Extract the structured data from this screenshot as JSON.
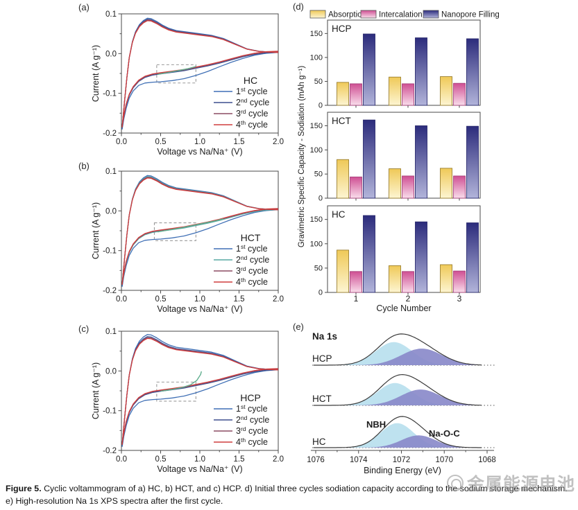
{
  "caption": {
    "label": "Figure 5.",
    "text": " Cyclic voltammogram of a) HC, b) HCT, and c) HCP. d) Initial three cycles sodiation capacity according to the sodium storage mechanism. e) High-resolution Na 1s XPS spectra after the first cycle."
  },
  "watermark": {
    "text": "金属能源电池",
    "logo": "circle-swirl-logo"
  },
  "panel_tags": {
    "a": "(a)",
    "b": "(b)",
    "c": "(c)",
    "d": "(d)",
    "e": "(e)"
  },
  "cv_base": {
    "cathodic_first": [
      [
        2.0,
        0.003
      ],
      [
        1.85,
        0.001
      ],
      [
        1.7,
        -0.004
      ],
      [
        1.55,
        -0.012
      ],
      [
        1.4,
        -0.022
      ],
      [
        1.25,
        -0.033
      ],
      [
        1.1,
        -0.045
      ],
      [
        0.95,
        -0.055
      ],
      [
        0.8,
        -0.063
      ],
      [
        0.65,
        -0.068
      ],
      [
        0.5,
        -0.071
      ],
      [
        0.4,
        -0.072
      ],
      [
        0.3,
        -0.074
      ],
      [
        0.22,
        -0.08
      ],
      [
        0.15,
        -0.094
      ],
      [
        0.1,
        -0.112
      ],
      [
        0.06,
        -0.138
      ],
      [
        0.03,
        -0.165
      ],
      [
        0.01,
        -0.19
      ]
    ],
    "cathodic": [
      [
        2.0,
        0.003
      ],
      [
        1.85,
        0.002
      ],
      [
        1.7,
        -0.002
      ],
      [
        1.55,
        -0.008
      ],
      [
        1.4,
        -0.016
      ],
      [
        1.25,
        -0.024
      ],
      [
        1.1,
        -0.031
      ],
      [
        0.95,
        -0.037
      ],
      [
        0.8,
        -0.043
      ],
      [
        0.65,
        -0.047
      ],
      [
        0.5,
        -0.051
      ],
      [
        0.4,
        -0.054
      ],
      [
        0.3,
        -0.06
      ],
      [
        0.22,
        -0.07
      ],
      [
        0.15,
        -0.086
      ],
      [
        0.1,
        -0.105
      ],
      [
        0.06,
        -0.13
      ],
      [
        0.03,
        -0.16
      ],
      [
        0.01,
        -0.185
      ]
    ],
    "anodic": [
      [
        0.01,
        -0.185
      ],
      [
        0.04,
        -0.12
      ],
      [
        0.07,
        -0.06
      ],
      [
        0.1,
        -0.01
      ],
      [
        0.14,
        0.03
      ],
      [
        0.18,
        0.055
      ],
      [
        0.23,
        0.073
      ],
      [
        0.28,
        0.083
      ],
      [
        0.33,
        0.089
      ],
      [
        0.38,
        0.088
      ],
      [
        0.45,
        0.081
      ],
      [
        0.52,
        0.072
      ],
      [
        0.6,
        0.064
      ],
      [
        0.7,
        0.058
      ],
      [
        0.85,
        0.054
      ],
      [
        1.0,
        0.05
      ],
      [
        1.15,
        0.046
      ],
      [
        1.3,
        0.038
      ],
      [
        1.45,
        0.025
      ],
      [
        1.6,
        0.012
      ],
      [
        1.75,
        0.006
      ],
      [
        1.88,
        0.004
      ],
      [
        2.0,
        0.003
      ]
    ]
  },
  "chart_data": [
    {
      "id": "cv_a",
      "type": "line",
      "panel": "a",
      "sample": "HC",
      "sample_color": "#4f9a9a",
      "xlabel": "Voltage vs Na/Na⁺ (V)",
      "ylabel": "Current (A g⁻¹)",
      "xlim": [
        0,
        2
      ],
      "ylim": [
        -0.2,
        0.1
      ],
      "xticks": [
        "0.0",
        "0.5",
        "1.0",
        "1.5",
        "2.0"
      ],
      "yticks": [
        "0.1",
        "0.0",
        "-0.1",
        "-0.2"
      ],
      "cycles": [
        {
          "base": "1",
          "sup": "st",
          "rest": " cycle",
          "color": "#3f6fb5",
          "first": true,
          "scale": 1.0,
          "dy": 0
        },
        {
          "base": "2",
          "sup": "nd",
          "rest": " cycle",
          "color": "#3d4f8e",
          "first": false,
          "scale": 0.97,
          "dy": 0.0
        },
        {
          "base": "3",
          "sup": "rd",
          "rest": " cycle",
          "color": "#8c4a62",
          "first": false,
          "scale": 0.95,
          "dy": 0.002
        },
        {
          "base": "4",
          "sup": "th",
          "rest": " cycle",
          "color": "#cf3d3d",
          "first": false,
          "scale": 0.93,
          "dy": 0.003
        }
      ],
      "highlight_box": {
        "x0": 0.45,
        "x1": 0.95,
        "y0": -0.074,
        "y1": -0.028
      },
      "extra_segment": {
        "color": "#5fae8e",
        "points": [
          [
            0.46,
            -0.0525
          ],
          [
            0.58,
            -0.048
          ],
          [
            0.72,
            -0.043
          ],
          [
            0.85,
            -0.038
          ],
          [
            0.95,
            -0.0325
          ]
        ]
      }
    },
    {
      "id": "cv_b",
      "type": "line",
      "panel": "b",
      "sample": "HCT",
      "sample_color": "#8f8f4f",
      "xlabel": "Voltage vs Na/Na⁺ (V)",
      "ylabel": "Current (A g⁻¹)",
      "xlim": [
        0,
        2
      ],
      "ylim": [
        -0.2,
        0.1
      ],
      "xticks": [
        "0.0",
        "0.5",
        "1.0",
        "1.5",
        "2.0"
      ],
      "yticks": [
        "0.1",
        "0.0",
        "-0.1",
        "-0.2"
      ],
      "cycles": [
        {
          "base": "1",
          "sup": "st",
          "rest": " cycle",
          "color": "#3f6fb5",
          "first": true,
          "scale": 1.0,
          "dy": 0
        },
        {
          "base": "2",
          "sup": "nd",
          "rest": " cycle",
          "color": "#57a8a2",
          "first": false,
          "scale": 0.97,
          "dy": 0.0
        },
        {
          "base": "3",
          "sup": "rd",
          "rest": " cycle",
          "color": "#8c4a62",
          "first": false,
          "scale": 0.95,
          "dy": 0.002
        },
        {
          "base": "4",
          "sup": "th",
          "rest": " cycle",
          "color": "#cf3d3d",
          "first": false,
          "scale": 0.93,
          "dy": 0.003
        }
      ],
      "highlight_box": {
        "x0": 0.42,
        "x1": 0.95,
        "y0": -0.075,
        "y1": -0.03
      },
      "extra_segment": {
        "color": "#5fae8e",
        "points": [
          [
            0.46,
            -0.053
          ],
          [
            0.6,
            -0.048
          ],
          [
            0.75,
            -0.043
          ],
          [
            0.9,
            -0.037
          ],
          [
            1.05,
            -0.031
          ],
          [
            1.2,
            -0.025
          ],
          [
            1.3,
            -0.02
          ]
        ]
      }
    },
    {
      "id": "cv_c",
      "type": "line",
      "panel": "c",
      "sample": "HCP",
      "sample_color": "#b3a86b",
      "xlabel": "Voltage vs Na/Na⁺ (V)",
      "ylabel": "Current (A g⁻¹)",
      "xlim": [
        0,
        2
      ],
      "ylim": [
        -0.2,
        0.1
      ],
      "xticks": [
        "0.0",
        "0.5",
        "1.0",
        "1.5",
        "2.0"
      ],
      "yticks": [
        "0.1",
        "0.0",
        "-0.1",
        "-0.2"
      ],
      "cycles": [
        {
          "base": "1",
          "sup": "st",
          "rest": " cycle",
          "color": "#3f6fb5",
          "first": true,
          "scale": 1.03,
          "dy": 0
        },
        {
          "base": "2",
          "sup": "nd",
          "rest": " cycle",
          "color": "#3d4f8e",
          "first": false,
          "scale": 0.97,
          "dy": 0.0
        },
        {
          "base": "3",
          "sup": "rd",
          "rest": " cycle",
          "color": "#8c4a62",
          "first": false,
          "scale": 0.94,
          "dy": 0.002
        },
        {
          "base": "4",
          "sup": "th",
          "rest": " cycle",
          "color": "#cf3d3d",
          "first": false,
          "scale": 0.92,
          "dy": 0.003
        }
      ],
      "highlight_box": {
        "x0": 0.45,
        "x1": 0.95,
        "y0": -0.076,
        "y1": -0.028
      },
      "extra_segment": {
        "color": "#5fae8e",
        "points": [
          [
            0.5,
            -0.051
          ],
          [
            0.65,
            -0.0465
          ],
          [
            0.78,
            -0.0415
          ],
          [
            0.88,
            -0.035
          ],
          [
            0.96,
            -0.024
          ],
          [
            1.01,
            -0.009
          ],
          [
            1.02,
            -0.001
          ]
        ]
      }
    },
    {
      "id": "sodiation_capacity",
      "type": "bar",
      "panel": "d",
      "ylabel": "Gravimetric Specific Capacity - Sodiation (mAh g⁻¹)",
      "xlabel": "Cycle Number",
      "categories": [
        "1",
        "2",
        "3"
      ],
      "ylim": [
        0,
        178
      ],
      "yticks": [
        0,
        50,
        100,
        150
      ],
      "legend": [
        "Absorption",
        "Intercalation",
        "Nanopore Filling"
      ],
      "series_colors": {
        "Absorption": {
          "top": "#efc958",
          "bottom": "#fdf5d2",
          "stroke": "#9c8030"
        },
        "Intercalation": {
          "top": "#cf4f93",
          "bottom": "#f9ddeb",
          "stroke": "#a8437c"
        },
        "Nanopore Filling": {
          "top": "#2c2c7c",
          "bottom": "#b2b4da",
          "stroke": "#2a2a6e"
        }
      },
      "subplots": [
        {
          "label": "HCP",
          "label_color": "#b3a86b",
          "series": [
            {
              "name": "Absorption",
              "values": [
                48,
                59,
                60
              ]
            },
            {
              "name": "Intercalation",
              "values": [
                45,
                45,
                46
              ]
            },
            {
              "name": "Nanopore Filling",
              "values": [
                149,
                141,
                139
              ]
            }
          ]
        },
        {
          "label": "HCT",
          "label_color": "#8f8f4f",
          "series": [
            {
              "name": "Absorption",
              "values": [
                80,
                61,
                62
              ]
            },
            {
              "name": "Intercalation",
              "values": [
                44,
                46,
                46
              ]
            },
            {
              "name": "Nanopore Filling",
              "values": [
                162,
                150,
                149
              ]
            }
          ]
        },
        {
          "label": "HC",
          "label_color": "#4f9a9a",
          "series": [
            {
              "name": "Absorption",
              "values": [
                87,
                55,
                57
              ]
            },
            {
              "name": "Intercalation",
              "values": [
                43,
                43,
                44
              ]
            },
            {
              "name": "Nanopore Filling",
              "values": [
                158,
                145,
                143
              ]
            }
          ]
        }
      ]
    },
    {
      "id": "xps_na1s",
      "type": "area",
      "panel": "e",
      "title": "Na 1s",
      "xlabel": "Binding Energy (eV)",
      "xlim": [
        1076,
        1068
      ],
      "xticks": [
        "1076",
        "1074",
        "1072",
        "1070",
        "1068"
      ],
      "component_colors": {
        "NBH": {
          "fill": "#b8e0ee",
          "label": "#7cc3dc"
        },
        "Na-O-C": {
          "fill": "#8a8aca",
          "label": "#7d7dc2"
        }
      },
      "component_labels": [
        {
          "text": "NBH"
        },
        {
          "text": "Na-O-C"
        }
      ],
      "spectra": [
        {
          "label": "HCP",
          "label_color": "#b3a86b",
          "peaks": [
            {
              "name": "NBH",
              "center": 1072.35,
              "sigma": 0.85,
              "rel_intensity": 0.64
            },
            {
              "name": "Na-O-C",
              "center": 1071.05,
              "sigma": 0.95,
              "rel_intensity": 0.46
            }
          ]
        },
        {
          "label": "HCT",
          "label_color": "#8f8f4f",
          "peaks": [
            {
              "name": "NBH",
              "center": 1072.3,
              "sigma": 0.82,
              "rel_intensity": 0.62
            },
            {
              "name": "Na-O-C",
              "center": 1071.1,
              "sigma": 0.92,
              "rel_intensity": 0.44
            }
          ]
        },
        {
          "label": "HC",
          "label_color": "#4f9a9a",
          "peaks": [
            {
              "name": "NBH",
              "center": 1072.2,
              "sigma": 0.78,
              "rel_intensity": 0.68
            },
            {
              "name": "Na-O-C",
              "center": 1071.2,
              "sigma": 0.8,
              "rel_intensity": 0.34
            }
          ]
        }
      ]
    }
  ]
}
